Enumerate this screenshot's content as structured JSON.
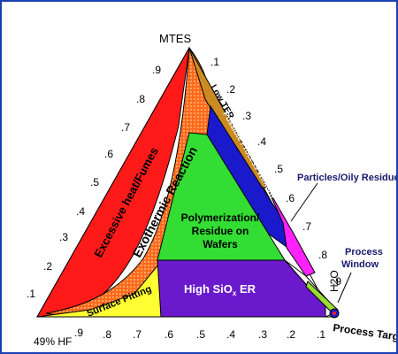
{
  "vertices": {
    "top": "MTES",
    "bottom_left": "49% HF",
    "right": "H2O"
  },
  "left_ticks": [
    ".9",
    ".8",
    ".7",
    ".6",
    ".5",
    ".4",
    ".3",
    ".2",
    ".1"
  ],
  "right_ticks": [
    ".1",
    ".2",
    ".3",
    ".4",
    ".5",
    ".6",
    ".7",
    ".8",
    ".9"
  ],
  "bottom_ticks": [
    ".9",
    ".8",
    ".7",
    ".6",
    ".5",
    ".4",
    ".3",
    ".2",
    ".1"
  ],
  "regions": {
    "excessive_heat": "Excessive heat/Fumes",
    "exothermic": "Exothermic Reaction",
    "surface_pitting": "Surface Pitting",
    "low_ter": "Low TER",
    "possible_process_window": "Possible Process Window",
    "polymerization_1": "Polymerization/",
    "polymerization_2": "Residue on",
    "polymerization_3": "Wafers",
    "high_sio": "High SiO",
    "high_sio_sub": "x",
    "high_sio_er": " ER"
  },
  "annotations": {
    "particles": "Particles/Oily Residue",
    "process_window_1": "Process",
    "process_window_2": "Window",
    "process_target": "Process Target"
  },
  "colors": {
    "frame": "#1a3fb0",
    "excessive_heat": "#ff1a1a",
    "exothermic": "#ff6a1a",
    "surface_pitting": "#ffff33",
    "low_ter": "#cc8a22",
    "possible_window": "#1a1acc",
    "polymerization": "#33dd33",
    "high_sio": "#6a1acc",
    "particles": "#ff22ff",
    "process_window": "#99dd33"
  }
}
